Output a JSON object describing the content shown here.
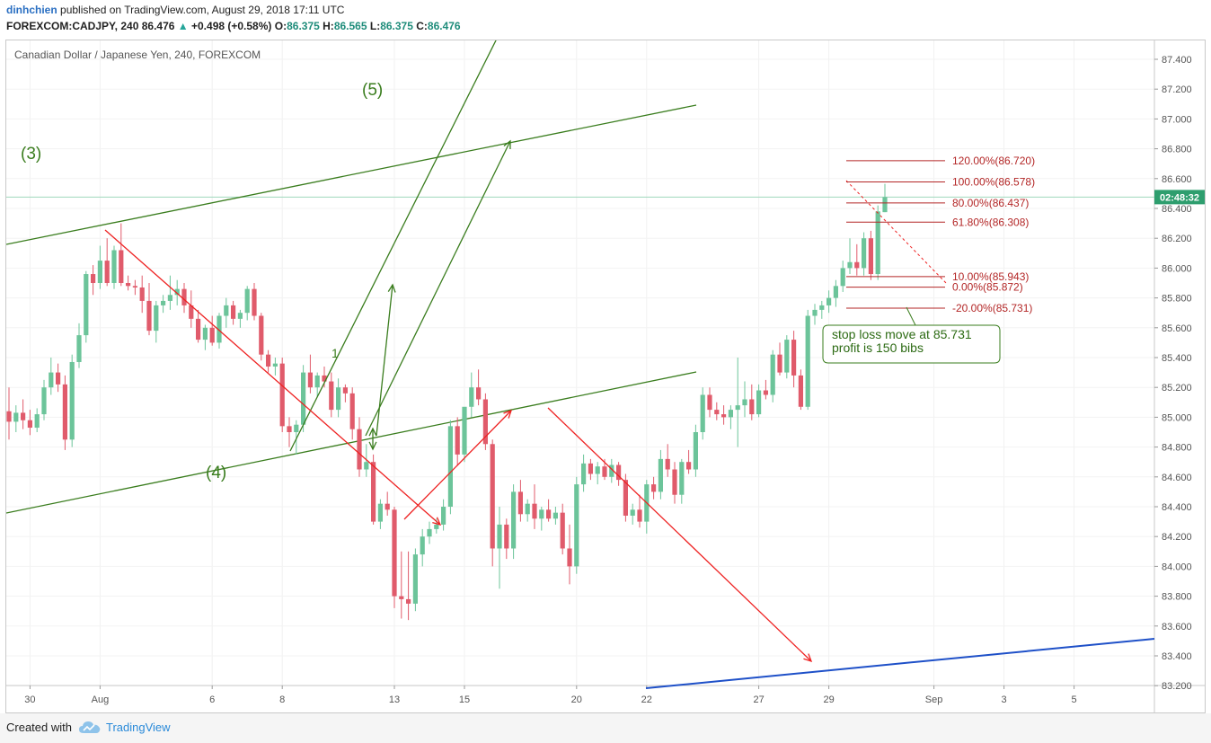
{
  "header": {
    "author": "dinhchien",
    "published_text": "published on TradingView.com, August 29, 2018 17:11 UTC",
    "symbol": "FOREXCOM:CADJPY, 240",
    "last": "86.476",
    "change": "+0.498 (+0.58%)",
    "o_label": "O:",
    "o_value": "86.375",
    "h_label": "H:",
    "h_value": "86.565",
    "l_label": "L:",
    "l_value": "86.375",
    "c_label": "C:",
    "c_value": "86.476"
  },
  "footer": {
    "created_with": "Created with",
    "brand": "TradingView"
  },
  "colors": {
    "up": "#6cc49a",
    "down": "#e05b6b",
    "wave": "#3a7d1e",
    "red_line": "#ee2222",
    "blue_line": "#1e50c8",
    "fib": "#b32626",
    "price_tag": "#2e9e6e"
  },
  "chart_data": {
    "type": "candlestick",
    "title": "Canadian Dollar / Japanese Yen, 240, FOREXCOM",
    "ylim": [
      83.2,
      87.5
    ],
    "y_ticks": [
      "87.400",
      "87.200",
      "87.000",
      "86.800",
      "86.600",
      "86.400",
      "86.200",
      "86.000",
      "85.800",
      "85.600",
      "85.400",
      "85.200",
      "85.000",
      "84.800",
      "84.600",
      "84.400",
      "84.200",
      "84.000",
      "83.800",
      "83.600",
      "83.400",
      "83.200"
    ],
    "x_ticks": [
      {
        "label": "30",
        "i": 3
      },
      {
        "label": "Aug",
        "i": 13
      },
      {
        "label": "6",
        "i": 29
      },
      {
        "label": "8",
        "i": 39
      },
      {
        "label": "13",
        "i": 55
      },
      {
        "label": "15",
        "i": 65
      },
      {
        "label": "20",
        "i": 81
      },
      {
        "label": "22",
        "i": 91
      },
      {
        "label": "27",
        "i": 107
      },
      {
        "label": "29",
        "i": 117
      },
      {
        "label": "Sep",
        "i": 132
      },
      {
        "label": "3",
        "i": 142
      },
      {
        "label": "5",
        "i": 152
      }
    ],
    "last_price": 86.476,
    "countdown": "02:48:32",
    "candles": [
      {
        "o": 85.04,
        "h": 85.2,
        "l": 84.85,
        "c": 84.97
      },
      {
        "o": 84.97,
        "h": 85.08,
        "l": 84.9,
        "c": 85.03
      },
      {
        "o": 85.03,
        "h": 85.12,
        "l": 84.92,
        "c": 84.98
      },
      {
        "o": 84.98,
        "h": 85.05,
        "l": 84.88,
        "c": 84.93
      },
      {
        "o": 84.93,
        "h": 85.06,
        "l": 84.9,
        "c": 85.02
      },
      {
        "o": 85.02,
        "h": 85.25,
        "l": 84.98,
        "c": 85.2
      },
      {
        "o": 85.2,
        "h": 85.4,
        "l": 85.15,
        "c": 85.3
      },
      {
        "o": 85.3,
        "h": 85.36,
        "l": 85.17,
        "c": 85.22
      },
      {
        "o": 85.22,
        "h": 85.28,
        "l": 84.78,
        "c": 84.85
      },
      {
        "o": 84.85,
        "h": 85.42,
        "l": 84.8,
        "c": 85.37
      },
      {
        "o": 85.37,
        "h": 85.63,
        "l": 85.33,
        "c": 85.55
      },
      {
        "o": 85.55,
        "h": 85.98,
        "l": 85.5,
        "c": 85.96
      },
      {
        "o": 85.96,
        "h": 86.02,
        "l": 85.82,
        "c": 85.9
      },
      {
        "o": 85.9,
        "h": 86.15,
        "l": 85.86,
        "c": 86.05
      },
      {
        "o": 86.05,
        "h": 86.2,
        "l": 85.88,
        "c": 85.9
      },
      {
        "o": 85.9,
        "h": 86.15,
        "l": 85.86,
        "c": 86.12
      },
      {
        "o": 86.12,
        "h": 86.3,
        "l": 85.88,
        "c": 85.9
      },
      {
        "o": 85.9,
        "h": 85.95,
        "l": 85.85,
        "c": 85.88
      },
      {
        "o": 85.88,
        "h": 85.92,
        "l": 85.82,
        "c": 85.87
      },
      {
        "o": 85.87,
        "h": 85.95,
        "l": 85.7,
        "c": 85.78
      },
      {
        "o": 85.78,
        "h": 85.9,
        "l": 85.55,
        "c": 85.58
      },
      {
        "o": 85.58,
        "h": 85.78,
        "l": 85.5,
        "c": 85.75
      },
      {
        "o": 85.75,
        "h": 85.82,
        "l": 85.7,
        "c": 85.78
      },
      {
        "o": 85.78,
        "h": 85.95,
        "l": 85.72,
        "c": 85.82
      },
      {
        "o": 85.82,
        "h": 85.92,
        "l": 85.75,
        "c": 85.86
      },
      {
        "o": 85.86,
        "h": 85.9,
        "l": 85.7,
        "c": 85.75
      },
      {
        "o": 85.75,
        "h": 85.85,
        "l": 85.6,
        "c": 85.66
      },
      {
        "o": 85.66,
        "h": 85.72,
        "l": 85.5,
        "c": 85.52
      },
      {
        "o": 85.52,
        "h": 85.62,
        "l": 85.45,
        "c": 85.6
      },
      {
        "o": 85.6,
        "h": 85.68,
        "l": 85.48,
        "c": 85.5
      },
      {
        "o": 85.5,
        "h": 85.7,
        "l": 85.46,
        "c": 85.68
      },
      {
        "o": 85.68,
        "h": 85.8,
        "l": 85.6,
        "c": 85.75
      },
      {
        "o": 85.75,
        "h": 85.78,
        "l": 85.62,
        "c": 85.66
      },
      {
        "o": 85.66,
        "h": 85.72,
        "l": 85.6,
        "c": 85.7
      },
      {
        "o": 85.7,
        "h": 85.88,
        "l": 85.65,
        "c": 85.86
      },
      {
        "o": 85.86,
        "h": 85.9,
        "l": 85.65,
        "c": 85.68
      },
      {
        "o": 85.68,
        "h": 85.7,
        "l": 85.38,
        "c": 85.42
      },
      {
        "o": 85.42,
        "h": 85.45,
        "l": 85.3,
        "c": 85.34
      },
      {
        "o": 85.34,
        "h": 85.4,
        "l": 85.28,
        "c": 85.36
      },
      {
        "o": 85.36,
        "h": 85.4,
        "l": 84.9,
        "c": 84.94
      },
      {
        "o": 84.94,
        "h": 85.0,
        "l": 84.8,
        "c": 84.9
      },
      {
        "o": 84.9,
        "h": 84.98,
        "l": 84.75,
        "c": 84.95
      },
      {
        "o": 84.95,
        "h": 85.35,
        "l": 84.9,
        "c": 85.3
      },
      {
        "o": 85.3,
        "h": 85.42,
        "l": 85.16,
        "c": 85.2
      },
      {
        "o": 85.2,
        "h": 85.3,
        "l": 85.14,
        "c": 85.28
      },
      {
        "o": 85.28,
        "h": 85.34,
        "l": 85.2,
        "c": 85.24
      },
      {
        "o": 85.24,
        "h": 85.3,
        "l": 85.0,
        "c": 85.05
      },
      {
        "o": 85.05,
        "h": 85.26,
        "l": 85.0,
        "c": 85.2
      },
      {
        "o": 85.2,
        "h": 85.22,
        "l": 85.1,
        "c": 85.16
      },
      {
        "o": 85.16,
        "h": 85.2,
        "l": 84.85,
        "c": 84.92
      },
      {
        "o": 84.92,
        "h": 85.0,
        "l": 84.6,
        "c": 84.65
      },
      {
        "o": 84.65,
        "h": 84.82,
        "l": 84.6,
        "c": 84.7
      },
      {
        "o": 84.7,
        "h": 84.75,
        "l": 84.28,
        "c": 84.3
      },
      {
        "o": 84.3,
        "h": 84.45,
        "l": 84.25,
        "c": 84.42
      },
      {
        "o": 84.42,
        "h": 84.5,
        "l": 84.34,
        "c": 84.38
      },
      {
        "o": 84.38,
        "h": 84.4,
        "l": 83.72,
        "c": 83.8
      },
      {
        "o": 83.8,
        "h": 84.1,
        "l": 83.65,
        "c": 83.78
      },
      {
        "o": 83.78,
        "h": 84.1,
        "l": 83.64,
        "c": 83.75
      },
      {
        "o": 83.75,
        "h": 84.12,
        "l": 83.7,
        "c": 84.08
      },
      {
        "o": 84.08,
        "h": 84.25,
        "l": 84.0,
        "c": 84.2
      },
      {
        "o": 84.2,
        "h": 84.3,
        "l": 84.15,
        "c": 84.25
      },
      {
        "o": 84.25,
        "h": 84.32,
        "l": 84.22,
        "c": 84.28
      },
      {
        "o": 84.28,
        "h": 84.45,
        "l": 84.24,
        "c": 84.4
      },
      {
        "o": 84.4,
        "h": 84.98,
        "l": 84.35,
        "c": 84.94
      },
      {
        "o": 84.94,
        "h": 85.0,
        "l": 84.68,
        "c": 84.75
      },
      {
        "o": 84.75,
        "h": 85.05,
        "l": 84.7,
        "c": 85.07
      },
      {
        "o": 85.07,
        "h": 85.3,
        "l": 85.0,
        "c": 85.2
      },
      {
        "o": 85.2,
        "h": 85.32,
        "l": 85.08,
        "c": 85.12
      },
      {
        "o": 85.12,
        "h": 85.16,
        "l": 84.78,
        "c": 84.82
      },
      {
        "o": 84.82,
        "h": 84.85,
        "l": 84.0,
        "c": 84.12
      },
      {
        "o": 84.12,
        "h": 84.4,
        "l": 83.85,
        "c": 84.28
      },
      {
        "o": 84.28,
        "h": 84.32,
        "l": 84.05,
        "c": 84.12
      },
      {
        "o": 84.12,
        "h": 84.55,
        "l": 84.05,
        "c": 84.5
      },
      {
        "o": 84.5,
        "h": 84.58,
        "l": 84.3,
        "c": 84.35
      },
      {
        "o": 84.35,
        "h": 84.45,
        "l": 84.3,
        "c": 84.42
      },
      {
        "o": 84.42,
        "h": 84.55,
        "l": 84.25,
        "c": 84.32
      },
      {
        "o": 84.32,
        "h": 84.4,
        "l": 84.24,
        "c": 84.38
      },
      {
        "o": 84.38,
        "h": 84.45,
        "l": 84.3,
        "c": 84.32
      },
      {
        "o": 84.32,
        "h": 84.4,
        "l": 84.28,
        "c": 84.36
      },
      {
        "o": 84.36,
        "h": 84.42,
        "l": 84.08,
        "c": 84.12
      },
      {
        "o": 84.12,
        "h": 84.28,
        "l": 83.88,
        "c": 84.0
      },
      {
        "o": 84.0,
        "h": 84.6,
        "l": 83.95,
        "c": 84.55
      },
      {
        "o": 84.55,
        "h": 84.75,
        "l": 84.5,
        "c": 84.69
      },
      {
        "o": 84.69,
        "h": 84.72,
        "l": 84.58,
        "c": 84.62
      },
      {
        "o": 84.62,
        "h": 84.7,
        "l": 84.55,
        "c": 84.67
      },
      {
        "o": 84.67,
        "h": 84.72,
        "l": 84.58,
        "c": 84.6
      },
      {
        "o": 84.6,
        "h": 84.72,
        "l": 84.56,
        "c": 84.68
      },
      {
        "o": 84.68,
        "h": 84.7,
        "l": 84.54,
        "c": 84.58
      },
      {
        "o": 84.58,
        "h": 84.62,
        "l": 84.3,
        "c": 84.34
      },
      {
        "o": 84.34,
        "h": 84.42,
        "l": 84.28,
        "c": 84.38
      },
      {
        "o": 84.38,
        "h": 84.48,
        "l": 84.26,
        "c": 84.3
      },
      {
        "o": 84.3,
        "h": 84.58,
        "l": 84.22,
        "c": 84.55
      },
      {
        "o": 84.55,
        "h": 84.6,
        "l": 84.45,
        "c": 84.5
      },
      {
        "o": 84.5,
        "h": 84.78,
        "l": 84.45,
        "c": 84.72
      },
      {
        "o": 84.72,
        "h": 84.82,
        "l": 84.6,
        "c": 84.65
      },
      {
        "o": 84.65,
        "h": 84.7,
        "l": 84.42,
        "c": 84.48
      },
      {
        "o": 84.48,
        "h": 84.72,
        "l": 84.42,
        "c": 84.7
      },
      {
        "o": 84.7,
        "h": 84.78,
        "l": 84.62,
        "c": 84.65
      },
      {
        "o": 84.65,
        "h": 84.95,
        "l": 84.6,
        "c": 84.9
      },
      {
        "o": 84.9,
        "h": 85.2,
        "l": 84.85,
        "c": 85.15
      },
      {
        "o": 85.15,
        "h": 85.2,
        "l": 85.0,
        "c": 85.05
      },
      {
        "o": 85.05,
        "h": 85.1,
        "l": 84.98,
        "c": 85.02
      },
      {
        "o": 85.02,
        "h": 85.08,
        "l": 84.95,
        "c": 85.0
      },
      {
        "o": 85.0,
        "h": 85.08,
        "l": 84.92,
        "c": 85.05
      },
      {
        "o": 85.05,
        "h": 85.4,
        "l": 84.8,
        "c": 85.08
      },
      {
        "o": 85.08,
        "h": 85.24,
        "l": 85.0,
        "c": 85.12
      },
      {
        "o": 85.12,
        "h": 85.22,
        "l": 84.98,
        "c": 85.02
      },
      {
        "o": 85.02,
        "h": 85.22,
        "l": 85.0,
        "c": 85.18
      },
      {
        "o": 85.18,
        "h": 85.25,
        "l": 85.12,
        "c": 85.15
      },
      {
        "o": 85.15,
        "h": 85.45,
        "l": 85.1,
        "c": 85.42
      },
      {
        "o": 85.42,
        "h": 85.5,
        "l": 85.28,
        "c": 85.3
      },
      {
        "o": 85.3,
        "h": 85.55,
        "l": 85.26,
        "c": 85.52
      },
      {
        "o": 85.52,
        "h": 85.58,
        "l": 85.2,
        "c": 85.28
      },
      {
        "o": 85.28,
        "h": 85.32,
        "l": 85.05,
        "c": 85.07
      },
      {
        "o": 85.07,
        "h": 85.72,
        "l": 85.05,
        "c": 85.68
      },
      {
        "o": 85.68,
        "h": 85.76,
        "l": 85.62,
        "c": 85.72
      },
      {
        "o": 85.72,
        "h": 85.78,
        "l": 85.66,
        "c": 85.75
      },
      {
        "o": 85.75,
        "h": 85.85,
        "l": 85.7,
        "c": 85.8
      },
      {
        "o": 85.8,
        "h": 85.92,
        "l": 85.74,
        "c": 85.88
      },
      {
        "o": 85.88,
        "h": 86.05,
        "l": 85.84,
        "c": 86.0
      },
      {
        "o": 86.0,
        "h": 86.2,
        "l": 85.96,
        "c": 86.04
      },
      {
        "o": 86.04,
        "h": 86.16,
        "l": 85.95,
        "c": 86.0
      },
      {
        "o": 86.0,
        "h": 86.24,
        "l": 85.95,
        "c": 86.2
      },
      {
        "o": 86.2,
        "h": 86.25,
        "l": 85.92,
        "c": 85.96
      },
      {
        "o": 85.96,
        "h": 86.42,
        "l": 85.92,
        "c": 86.38
      },
      {
        "o": 86.375,
        "h": 86.565,
        "l": 86.375,
        "c": 86.476
      }
    ],
    "fib_levels": [
      {
        "label": "120.00%(86.720)",
        "price": 86.72
      },
      {
        "label": "100.00%(86.578)",
        "price": 86.578
      },
      {
        "label": "80.00%(86.437)",
        "price": 86.437
      },
      {
        "label": "61.80%(86.308)",
        "price": 86.308
      },
      {
        "label": "10.00%(85.943)",
        "price": 85.943
      },
      {
        "label": "0.00%(85.872)",
        "price": 85.872
      },
      {
        "label": "-20.00%(85.731)",
        "price": 85.731
      }
    ],
    "annotations": {
      "wave3": "(3)",
      "wave4": "(4)",
      "wave5": "(5)",
      "sub1": "1",
      "note_line1": "stop loss move at 85.731",
      "note_line2": "profit is 150 bibs"
    }
  }
}
